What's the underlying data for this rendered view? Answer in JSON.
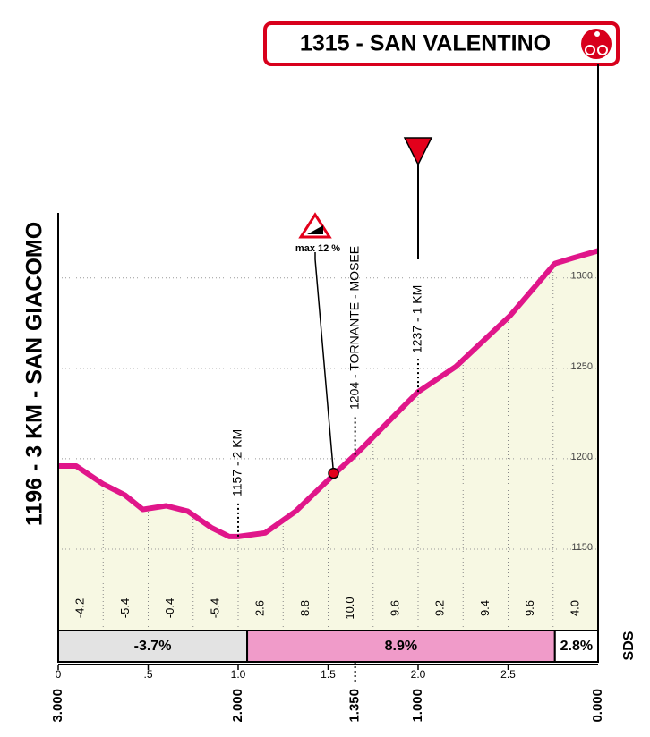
{
  "chart_data": {
    "type": "area",
    "title": "1315 - SAN VALENTINO",
    "subtitle": "1196 - 3 KM - SAN GIACOMO",
    "logo": "SDS",
    "line_color": "#e0168a",
    "fill_color": "#f7f8e3",
    "x": [
      0,
      0.1,
      0.25,
      0.37,
      0.47,
      0.6,
      0.72,
      0.85,
      0.95,
      1.0,
      1.15,
      1.32,
      1.55,
      1.67,
      1.87,
      2.0,
      2.21,
      2.51,
      2.76,
      2.86,
      3.0
    ],
    "values": [
      1196,
      1196,
      1186,
      1180,
      1172,
      1174,
      1171,
      1162,
      1157,
      1157,
      1159,
      1171,
      1193,
      1204,
      1224,
      1237,
      1251,
      1279,
      1308,
      1311,
      1315
    ],
    "xlim": [
      0,
      3
    ],
    "xticks": [
      0,
      {
        "value": 0.5,
        "label": ".5"
      },
      {
        "value": 1,
        "label": "1.0"
      },
      {
        "value": 1.5,
        "label": "1.5"
      },
      {
        "value": 2,
        "label": "2.0"
      },
      {
        "value": 2.5,
        "label": "2.5"
      }
    ],
    "x2ticks": [
      {
        "value": 0,
        "label": "3.000"
      },
      {
        "value": 1,
        "label": "2.000"
      },
      {
        "value": 1.65,
        "label": "1.350"
      },
      {
        "value": 2,
        "label": "1.000"
      },
      {
        "value": 3,
        "label": "0.000"
      }
    ],
    "ylim": [
      1105,
      1335
    ],
    "yticks": [
      1150,
      1200,
      1250,
      1300
    ],
    "grid": true,
    "gradient_bins": [
      0,
      0.25,
      0.5,
      0.75,
      1.0,
      1.25,
      1.5,
      1.75,
      2.0,
      2.25,
      2.5,
      2.75,
      3.0
    ],
    "gradient_values": [
      -4.2,
      -5.4,
      -0.4,
      -5.4,
      2.6,
      8.8,
      10.0,
      9.6,
      9.2,
      9.4,
      9.6,
      4.0
    ],
    "gradient_labels": [
      "-4.2",
      "-5.4",
      "-0.4",
      "-5.4",
      "2.6",
      "8.8",
      "10.0",
      "9.6",
      "9.2",
      "9.4",
      "9.6",
      "4.0"
    ],
    "sections": [
      {
        "from": 0,
        "to": 1.05,
        "value": -3.7,
        "label": "-3.7%",
        "color": "#e3e3e3"
      },
      {
        "from": 1.05,
        "to": 2.76,
        "value": 8.9,
        "label": "8.9%",
        "color": "#f09bc9"
      },
      {
        "from": 2.76,
        "to": 3,
        "value": 2.8,
        "label": "2.8%",
        "color": "#ffffff"
      }
    ],
    "annotations": [
      {
        "label": "1157 - 2 KM",
        "x": 1.0
      },
      {
        "label": "1204 - TORNANTE - MOSEE",
        "x": 1.65
      },
      {
        "label": "1237 - 1 KM",
        "x": 2.0
      }
    ],
    "max_gradient": {
      "label": "max 12 %",
      "x": 1.53,
      "y": 1192
    },
    "flag": {
      "x": 2.0
    }
  }
}
